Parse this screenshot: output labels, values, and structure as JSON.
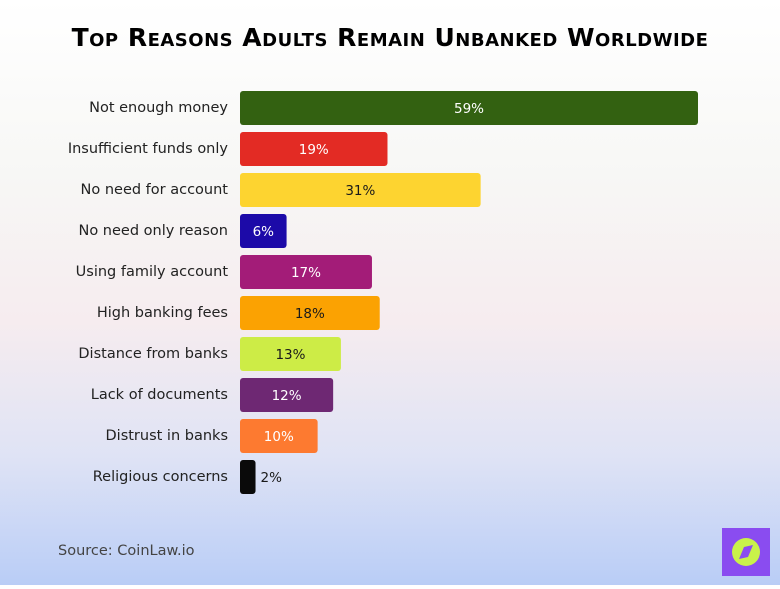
{
  "chart_data": {
    "type": "bar",
    "orientation": "horizontal",
    "title": "Top Reasons Adults Remain Unbanked Worldwide",
    "source": "Source: CoinLaw.io",
    "categories": [
      "Not enough money",
      "Insufficient funds only",
      "No need for account",
      "No need only reason",
      "Using family account",
      "High banking fees",
      "Distance from banks",
      "Lack of documents",
      "Distrust in banks",
      "Religious concerns"
    ],
    "values": [
      59,
      19,
      31,
      6,
      17,
      18,
      13,
      12,
      10,
      2
    ],
    "value_labels": [
      "59%",
      "19%",
      "31%",
      "6%",
      "17%",
      "18%",
      "13%",
      "12%",
      "10%",
      "2%"
    ],
    "colors": [
      "#336111",
      "#e32b24",
      "#fdd430",
      "#1c0aa8",
      "#a31c78",
      "#fba202",
      "#cdec46",
      "#6e2873",
      "#fd7a30",
      "#0a0a0a"
    ]
  }
}
